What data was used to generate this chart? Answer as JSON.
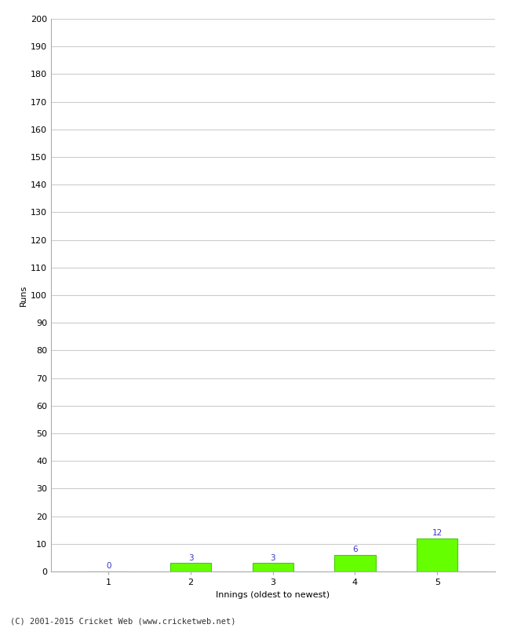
{
  "xlabel": "Innings (oldest to newest)",
  "ylabel": "Runs",
  "categories": [
    1,
    2,
    3,
    4,
    5
  ],
  "values": [
    0,
    3,
    3,
    6,
    12
  ],
  "bar_color": "#66ff00",
  "bar_edgecolor": "#44cc00",
  "ylim": [
    0,
    200
  ],
  "yticks": [
    0,
    10,
    20,
    30,
    40,
    50,
    60,
    70,
    80,
    90,
    100,
    110,
    120,
    130,
    140,
    150,
    160,
    170,
    180,
    190,
    200
  ],
  "label_color": "#3333cc",
  "label_fontsize": 7.5,
  "axis_fontsize": 8,
  "tick_fontsize": 8,
  "background_color": "#ffffff",
  "grid_color": "#cccccc",
  "footer": "(C) 2001-2015 Cricket Web (www.cricketweb.net)",
  "footer_fontsize": 7.5
}
